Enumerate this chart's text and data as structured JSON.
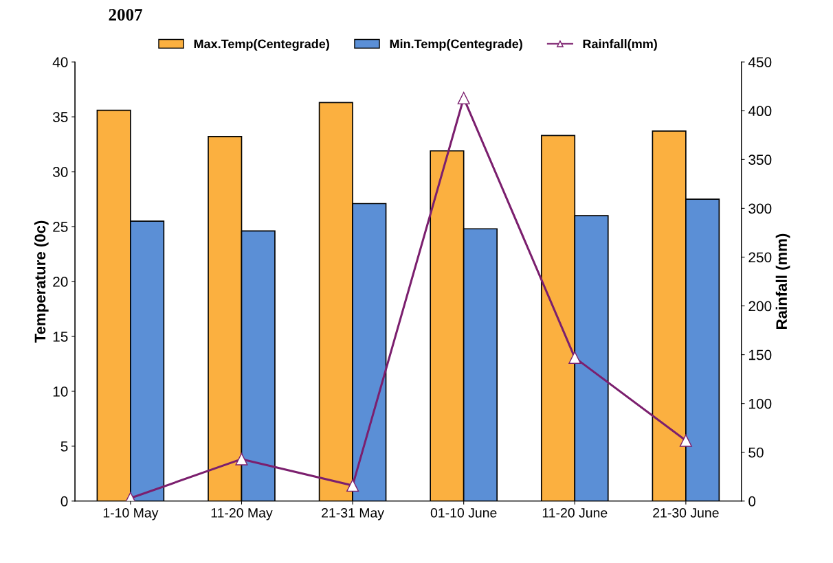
{
  "chart_data": {
    "type": "bar",
    "title": "2007",
    "ylabel": "Temperature (0c)",
    "y2label": "Rainfall (mm)",
    "categories": [
      "1-10 May",
      "11-20 May",
      "21-31 May",
      "01-10 June",
      "11-20 June",
      "21-30 June"
    ],
    "series": [
      {
        "name": "Max.Temp(Centegrade)",
        "color": "#fbb040",
        "values": [
          35.6,
          33.2,
          36.3,
          31.9,
          33.3,
          33.7
        ]
      },
      {
        "name": "Min.Temp(Centegrade)",
        "color": "#5b8fd6",
        "values": [
          25.5,
          24.6,
          27.1,
          24.8,
          26.0,
          27.5
        ]
      },
      {
        "name": "Rainfall(mm)",
        "type": "line",
        "axis": "y2",
        "color": "#7b1f6e",
        "marker": "triangle",
        "values": [
          3,
          43,
          16,
          413,
          147,
          62
        ]
      }
    ],
    "ylim": [
      0,
      40
    ],
    "yticks": [
      0,
      5,
      10,
      15,
      20,
      25,
      30,
      35,
      40
    ],
    "y2lim": [
      0,
      450
    ],
    "y2ticks": [
      0,
      50,
      100,
      150,
      200,
      250,
      300,
      350,
      400,
      450
    ],
    "grid": false,
    "legend": "top"
  }
}
